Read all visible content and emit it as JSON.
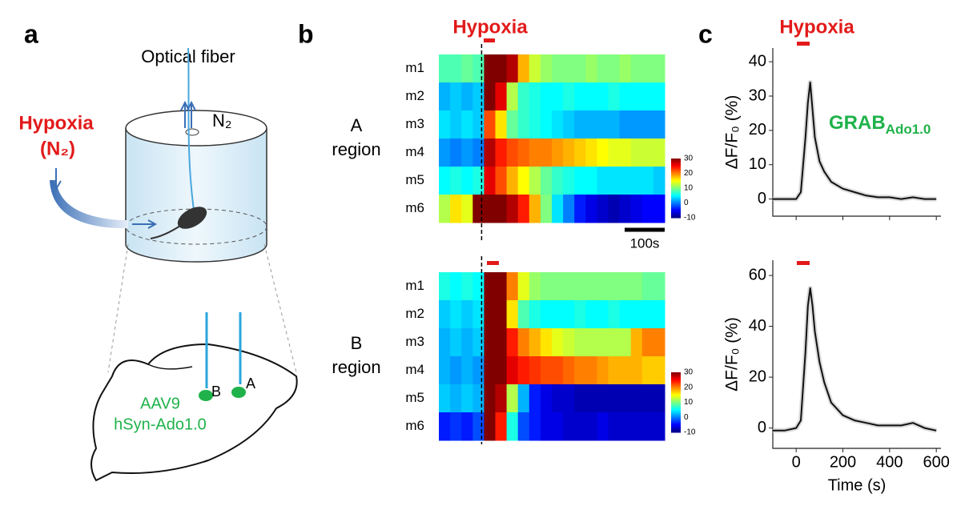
{
  "panels": {
    "a": "a",
    "b": "b",
    "c": "c"
  },
  "diagram": {
    "optical_fiber": "Optical fiber",
    "hypoxia": "Hypoxia",
    "n2_inlet": "(N₂)",
    "n2_chamber": "N₂",
    "virus": [
      "AAV9",
      "hSyn-Ado1.0"
    ],
    "site_a": "A",
    "site_b": "B"
  },
  "hypoxia_b": "Hypoxia",
  "hypoxia_c": "Hypoxia",
  "scale_bar": "100s",
  "grab": {
    "main": "GRAB",
    "sub": "Ado1.0"
  },
  "chart_data": [
    {
      "type": "heatmap",
      "label": [
        "A",
        "region"
      ],
      "rows": [
        "m1",
        "m2",
        "m3",
        "m4",
        "m5",
        "m6"
      ],
      "zlim": [
        -10,
        30
      ],
      "zticks": [
        30,
        20,
        10,
        0,
        -10
      ],
      "values": [
        [
          8,
          8,
          9,
          8,
          30,
          30,
          28,
          18,
          13,
          11,
          10,
          10,
          10,
          11,
          10,
          10,
          11,
          10,
          10,
          10
        ],
        [
          2,
          3,
          2,
          3,
          30,
          26,
          12,
          7,
          6,
          5,
          5,
          6,
          5,
          5,
          5,
          6,
          5,
          5,
          5,
          5
        ],
        [
          4,
          3,
          4,
          3,
          22,
          16,
          9,
          7,
          6,
          5,
          4,
          3,
          2,
          2,
          2,
          2,
          1,
          1,
          1,
          1
        ],
        [
          1,
          0,
          1,
          0,
          28,
          24,
          22,
          21,
          20,
          20,
          19,
          18,
          17,
          16,
          15,
          14,
          14,
          13,
          13,
          13
        ],
        [
          5,
          6,
          5,
          6,
          26,
          22,
          18,
          15,
          12,
          9,
          7,
          6,
          5,
          5,
          4,
          4,
          4,
          4,
          4,
          3
        ],
        [
          12,
          16,
          14,
          30,
          30,
          30,
          28,
          24,
          18,
          10,
          4,
          0,
          -4,
          -6,
          -7,
          -8,
          -7,
          -6,
          -5,
          -5
        ]
      ]
    },
    {
      "type": "heatmap",
      "label": [
        "B",
        "region"
      ],
      "rows": [
        "m1",
        "m2",
        "m3",
        "m4",
        "m5",
        "m6"
      ],
      "zlim": [
        -10,
        30
      ],
      "zticks": [
        30,
        20,
        10,
        0,
        -10
      ],
      "values": [
        [
          6,
          5,
          6,
          5,
          30,
          30,
          20,
          14,
          11,
          10,
          10,
          10,
          10,
          10,
          10,
          10,
          10,
          10,
          9,
          9
        ],
        [
          3,
          4,
          3,
          4,
          30,
          30,
          16,
          8,
          6,
          5,
          5,
          5,
          6,
          5,
          5,
          6,
          5,
          5,
          5,
          5
        ],
        [
          2,
          3,
          2,
          3,
          30,
          30,
          24,
          20,
          18,
          16,
          14,
          13,
          12,
          12,
          12,
          12,
          12,
          18,
          20,
          20
        ],
        [
          2,
          1,
          2,
          1,
          30,
          30,
          26,
          24,
          23,
          22,
          22,
          21,
          20,
          20,
          19,
          18,
          18,
          18,
          17,
          17
        ],
        [
          3,
          2,
          3,
          2,
          30,
          28,
          12,
          2,
          -4,
          -6,
          -7,
          -7,
          -8,
          -8,
          -8,
          -8,
          -8,
          -8,
          -8,
          -8
        ],
        [
          -4,
          -3,
          -4,
          -2,
          30,
          24,
          6,
          -2,
          -4,
          -6,
          -6,
          -7,
          -7,
          -7,
          -6,
          -7,
          -7,
          -7,
          -7,
          -7
        ]
      ]
    },
    {
      "type": "line",
      "ylabel": "ΔF/F₀ (%)",
      "color": "#111111",
      "xlim": [
        -100,
        620
      ],
      "ylim": [
        -5,
        44
      ],
      "yticks": [
        0,
        10,
        20,
        30,
        40
      ],
      "xticks": [
        0,
        200,
        400,
        600
      ],
      "xtick_labels": false,
      "x": [
        -100,
        -50,
        0,
        20,
        40,
        50,
        60,
        70,
        80,
        100,
        120,
        150,
        200,
        250,
        300,
        350,
        400,
        450,
        500,
        550,
        600
      ],
      "values": [
        0,
        0,
        0,
        2,
        18,
        28,
        34,
        26,
        18,
        11,
        8,
        5,
        3,
        2,
        1,
        0.5,
        0.5,
        0,
        0.5,
        0,
        0
      ]
    },
    {
      "type": "line",
      "ylabel": "ΔF/F₀ (%)",
      "xlabel": "Time (s)",
      "color": "#111111",
      "xlim": [
        -100,
        620
      ],
      "ylim": [
        -8,
        66
      ],
      "yticks": [
        0,
        20,
        40,
        60
      ],
      "xticks": [
        0,
        200,
        400,
        600
      ],
      "xtick_labels": true,
      "x": [
        -100,
        -50,
        0,
        20,
        40,
        50,
        60,
        70,
        80,
        100,
        120,
        150,
        200,
        250,
        300,
        350,
        400,
        450,
        500,
        550,
        600
      ],
      "values": [
        -1,
        -1,
        0,
        3,
        30,
        48,
        55,
        48,
        38,
        26,
        18,
        10,
        5,
        3,
        2,
        1,
        1,
        1,
        2,
        0,
        -1
      ]
    }
  ]
}
